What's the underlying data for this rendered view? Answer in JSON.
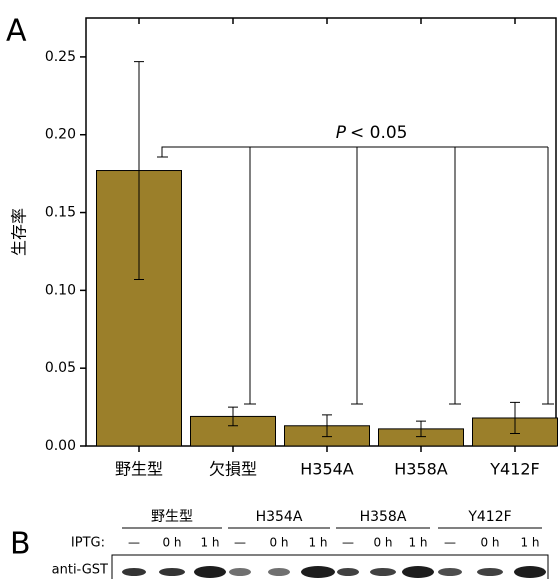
{
  "chart_data": {
    "type": "bar",
    "panel_label": "A",
    "ylabel": "生存率",
    "categories": [
      "野生型",
      "欠損型",
      "H354A",
      "H358A",
      "Y412F"
    ],
    "values": [
      0.177,
      0.019,
      0.013,
      0.011,
      0.018
    ],
    "errors": [
      0.07,
      0.006,
      0.007,
      0.005,
      0.01
    ],
    "color": "#9b7f2a",
    "ylim": [
      0,
      0.275
    ],
    "yticks": [
      {
        "value": 0,
        "label": "0.00"
      },
      0.05,
      {
        "value": 0.1,
        "label": "0.10"
      },
      0.15,
      {
        "value": 0.2,
        "label": "0.20"
      },
      0.25
    ],
    "annotation": {
      "symbol": "P",
      "text": "< 0.05"
    }
  },
  "blot": {
    "panel_label": "B",
    "groups": [
      "野生型",
      "H354A",
      "H358A",
      "Y412F"
    ],
    "row_label": "IPTG:",
    "lanes": [
      "—",
      "0 h",
      "1 h"
    ],
    "antibody": "anti-GST"
  }
}
